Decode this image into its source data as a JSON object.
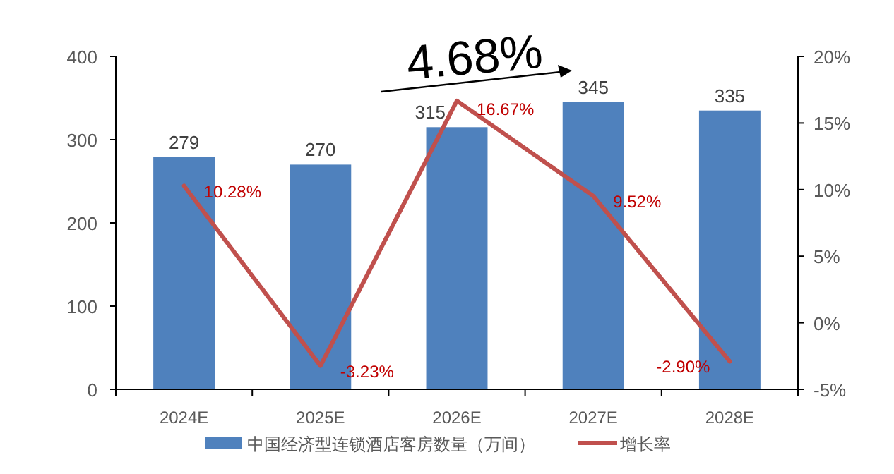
{
  "chart_data": {
    "type": "bar",
    "categories": [
      "2024E",
      "2025E",
      "2026E",
      "2027E",
      "2028E"
    ],
    "series": [
      {
        "name": "中国经济型连锁酒店客房数量（万间）",
        "type": "bar",
        "color": "#4f81bd",
        "values": [
          279,
          270,
          315,
          345,
          335
        ],
        "value_labels": [
          "279",
          "270",
          "315",
          "345",
          "335"
        ]
      },
      {
        "name": "增长率",
        "type": "line",
        "axis": "y2",
        "color": "#c0504d",
        "values": [
          10.28,
          -3.23,
          16.67,
          9.52,
          -2.9
        ],
        "value_labels": [
          "10.28%",
          "-3.23%",
          "16.67%",
          "9.52%",
          "-2.90%"
        ]
      }
    ],
    "ylim": [
      0,
      400
    ],
    "yticks": [
      0,
      100,
      200,
      300,
      400
    ],
    "y2lim": [
      -5,
      20
    ],
    "y2ticks": [
      {
        "value": -5,
        "label": "-5%"
      },
      {
        "value": 0,
        "label": "0%"
      },
      {
        "value": 5,
        "label": "5%"
      },
      {
        "value": 10,
        "label": "10%"
      },
      {
        "value": 15,
        "label": "15%"
      },
      {
        "value": 20,
        "label": "20%"
      }
    ],
    "legend": "bottom",
    "grid": false,
    "annotations": [
      "4.68%"
    ]
  }
}
